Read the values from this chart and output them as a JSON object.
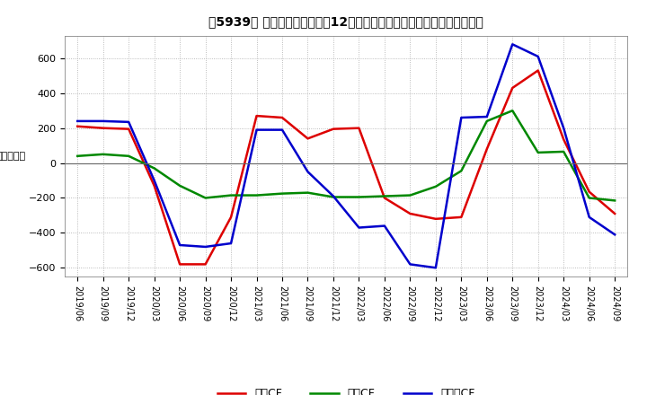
{
  "title": "【5939】 キャッシュフローの12か月移動合計の対前年同期増減額の推移",
  "ylabel": "（百万円）",
  "ylim": [
    -650,
    730
  ],
  "yticks": [
    -600,
    -400,
    -200,
    0,
    200,
    400,
    600
  ],
  "legend_labels": [
    "営業CF",
    "投資CF",
    "フリーCF"
  ],
  "legend_colors": [
    "#dd0000",
    "#008800",
    "#0000cc"
  ],
  "dates": [
    "2019/06",
    "2019/09",
    "2019/12",
    "2020/03",
    "2020/06",
    "2020/09",
    "2020/12",
    "2021/03",
    "2021/06",
    "2021/09",
    "2021/12",
    "2022/03",
    "2022/06",
    "2022/09",
    "2022/12",
    "2023/03",
    "2023/06",
    "2023/09",
    "2023/12",
    "2024/03",
    "2024/06",
    "2024/09"
  ],
  "operating_cf": [
    210,
    200,
    195,
    -130,
    -580,
    -580,
    -310,
    270,
    260,
    140,
    195,
    200,
    -200,
    -290,
    -320,
    -310,
    80,
    430,
    530,
    135,
    -165,
    -290
  ],
  "investing_cf": [
    40,
    50,
    40,
    -30,
    -130,
    -200,
    -185,
    -185,
    -175,
    -170,
    -195,
    -195,
    -190,
    -185,
    -135,
    -45,
    240,
    300,
    60,
    65,
    -200,
    -215
  ],
  "free_cf": [
    240,
    240,
    235,
    -100,
    -470,
    -480,
    -460,
    190,
    190,
    -50,
    -190,
    -370,
    -360,
    -580,
    -600,
    260,
    265,
    680,
    610,
    200,
    -310,
    -410
  ],
  "background_color": "#ffffff",
  "plot_background": "#ffffff",
  "grid_color": "#aaaaaa",
  "line_width": 1.8
}
